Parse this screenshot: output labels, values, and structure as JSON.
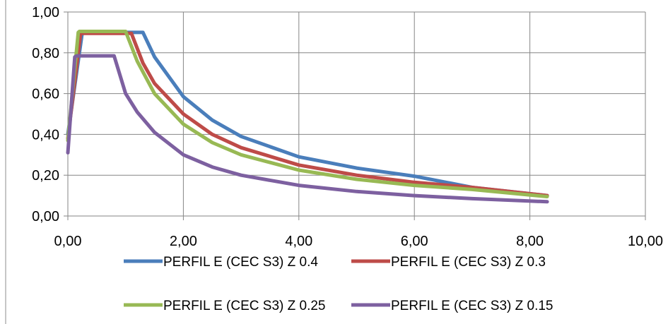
{
  "chart_data": {
    "type": "line",
    "title": "",
    "xlabel": "",
    "ylabel": "",
    "xlim": [
      0,
      10
    ],
    "ylim": [
      0,
      1
    ],
    "xticks": [
      "0,00",
      "2,00",
      "4,00",
      "6,00",
      "8,00",
      "10,00"
    ],
    "yticks": [
      "0,00",
      "0,20",
      "0,40",
      "0,60",
      "0,80",
      "1,00"
    ],
    "grid": true,
    "legend_position": "bottom",
    "series": [
      {
        "name": "PERFIL E (CEC S3) Z 0.4",
        "color": "#4a7ebb",
        "x": [
          0,
          0.25,
          0.3,
          1.3,
          1.5,
          2.0,
          2.5,
          3.0,
          4.0,
          5.0,
          6.0,
          7.0,
          8.3
        ],
        "y": [
          0.4,
          0.9,
          0.9,
          0.9,
          0.78,
          0.585,
          0.47,
          0.39,
          0.29,
          0.235,
          0.195,
          0.14,
          0.1
        ]
      },
      {
        "name": "PERFIL E (CEC S3) Z 0.3",
        "color": "#be4b48",
        "x": [
          0,
          0.22,
          0.27,
          1.1,
          1.3,
          1.5,
          2.0,
          2.5,
          3.0,
          4.0,
          5.0,
          6.0,
          7.0,
          8.3
        ],
        "y": [
          0.38,
          0.895,
          0.895,
          0.895,
          0.75,
          0.65,
          0.5,
          0.4,
          0.335,
          0.25,
          0.2,
          0.165,
          0.14,
          0.1
        ]
      },
      {
        "name": "PERFIL E (CEC S3) Z 0.25",
        "color": "#98b954",
        "x": [
          0,
          0.18,
          0.2,
          1.0,
          1.2,
          1.5,
          2.0,
          2.5,
          3.0,
          4.0,
          5.0,
          6.0,
          7.0,
          8.3
        ],
        "y": [
          0.37,
          0.9,
          0.905,
          0.905,
          0.76,
          0.6,
          0.45,
          0.36,
          0.3,
          0.225,
          0.18,
          0.15,
          0.13,
          0.095
        ]
      },
      {
        "name": "PERFIL E (CEC S3) Z 0.15",
        "color": "#7d60a0",
        "x": [
          0,
          0.12,
          0.15,
          0.8,
          1.0,
          1.2,
          1.5,
          2.0,
          2.5,
          3.0,
          4.0,
          5.0,
          6.0,
          7.0,
          8.3
        ],
        "y": [
          0.31,
          0.78,
          0.785,
          0.785,
          0.6,
          0.51,
          0.41,
          0.3,
          0.24,
          0.2,
          0.15,
          0.12,
          0.1,
          0.085,
          0.07
        ]
      }
    ]
  }
}
